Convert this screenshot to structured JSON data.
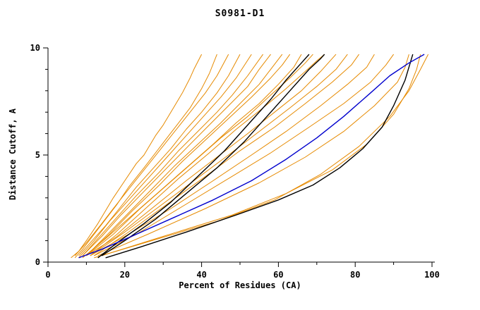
{
  "chart_data": {
    "type": "line",
    "title": "S0981-D1",
    "xlabel": "Percent of Residues (CA)",
    "ylabel": "Distance Cutoff, A",
    "xlim": [
      0,
      100
    ],
    "ylim": [
      0,
      10
    ],
    "xticks": [
      0,
      20,
      40,
      60,
      80,
      100
    ],
    "yticks": [
      0,
      5,
      10
    ],
    "xminor": [
      10,
      30,
      50,
      70,
      90
    ],
    "yminor": [
      1,
      2,
      3,
      4,
      6,
      7,
      8,
      9
    ],
    "grid": false,
    "legend": "none",
    "colors": {
      "model": "#E68A00",
      "reference": "#000000",
      "highlight": "#0000CD"
    },
    "series": [
      {
        "name": "orange-01",
        "color": "#E68A00",
        "width": 1,
        "points": [
          [
            6,
            0.2
          ],
          [
            8,
            0.5
          ],
          [
            10,
            1.0
          ],
          [
            13,
            1.8
          ],
          [
            15,
            2.4
          ],
          [
            17,
            3.0
          ],
          [
            20,
            3.8
          ],
          [
            23,
            4.6
          ],
          [
            25,
            5.0
          ],
          [
            28,
            5.9
          ],
          [
            30,
            6.4
          ],
          [
            33,
            7.3
          ],
          [
            35,
            7.9
          ],
          [
            37,
            8.6
          ],
          [
            38,
            9.0
          ],
          [
            40,
            9.7
          ]
        ]
      },
      {
        "name": "orange-02",
        "color": "#E68A00",
        "width": 1,
        "points": [
          [
            7,
            0.2
          ],
          [
            9,
            0.6
          ],
          [
            12,
            1.3
          ],
          [
            15,
            2.0
          ],
          [
            18,
            2.7
          ],
          [
            21,
            3.5
          ],
          [
            25,
            4.4
          ],
          [
            28,
            5.1
          ],
          [
            31,
            5.8
          ],
          [
            34,
            6.5
          ],
          [
            37,
            7.2
          ],
          [
            40,
            8.1
          ],
          [
            42,
            8.8
          ],
          [
            44,
            9.7
          ]
        ]
      },
      {
        "name": "orange-03",
        "color": "#E68A00",
        "width": 1,
        "points": [
          [
            7,
            0.3
          ],
          [
            10,
            0.9
          ],
          [
            14,
            1.8
          ],
          [
            17,
            2.5
          ],
          [
            21,
            3.4
          ],
          [
            25,
            4.3
          ],
          [
            29,
            5.2
          ],
          [
            33,
            6.1
          ],
          [
            37,
            7.0
          ],
          [
            41,
            7.9
          ],
          [
            44,
            8.7
          ],
          [
            47,
            9.7
          ]
        ]
      },
      {
        "name": "orange-04",
        "color": "#E68A00",
        "width": 1,
        "points": [
          [
            8,
            0.3
          ],
          [
            11,
            0.9
          ],
          [
            15,
            1.7
          ],
          [
            19,
            2.6
          ],
          [
            23,
            3.5
          ],
          [
            28,
            4.5
          ],
          [
            32,
            5.3
          ],
          [
            36,
            6.2
          ],
          [
            40,
            7.0
          ],
          [
            44,
            7.9
          ],
          [
            47,
            8.7
          ],
          [
            50,
            9.7
          ]
        ]
      },
      {
        "name": "orange-05",
        "color": "#E68A00",
        "width": 1,
        "points": [
          [
            8,
            0.2
          ],
          [
            12,
            1.0
          ],
          [
            16,
            1.9
          ],
          [
            21,
            2.9
          ],
          [
            26,
            3.9
          ],
          [
            31,
            4.9
          ],
          [
            36,
            5.9
          ],
          [
            41,
            6.9
          ],
          [
            45,
            7.7
          ],
          [
            49,
            8.6
          ],
          [
            53,
            9.7
          ]
        ]
      },
      {
        "name": "orange-06",
        "color": "#E68A00",
        "width": 1,
        "points": [
          [
            9,
            0.3
          ],
          [
            13,
            1.1
          ],
          [
            18,
            2.1
          ],
          [
            23,
            3.1
          ],
          [
            29,
            4.2
          ],
          [
            34,
            5.2
          ],
          [
            39,
            6.1
          ],
          [
            44,
            7.0
          ],
          [
            48,
            7.8
          ],
          [
            52,
            8.7
          ],
          [
            56,
            9.7
          ]
        ]
      },
      {
        "name": "orange-07",
        "color": "#E68A00",
        "width": 1,
        "points": [
          [
            9,
            0.3
          ],
          [
            14,
            1.2
          ],
          [
            19,
            2.2
          ],
          [
            25,
            3.3
          ],
          [
            31,
            4.4
          ],
          [
            37,
            5.5
          ],
          [
            42,
            6.4
          ],
          [
            47,
            7.3
          ],
          [
            52,
            8.2
          ],
          [
            55,
            9.0
          ],
          [
            58,
            9.7
          ]
        ]
      },
      {
        "name": "orange-08",
        "color": "#E68A00",
        "width": 1,
        "points": [
          [
            10,
            0.3
          ],
          [
            15,
            1.2
          ],
          [
            21,
            2.3
          ],
          [
            27,
            3.4
          ],
          [
            33,
            4.5
          ],
          [
            39,
            5.5
          ],
          [
            45,
            6.5
          ],
          [
            50,
            7.4
          ],
          [
            55,
            8.3
          ],
          [
            58,
            9.0
          ],
          [
            61,
            9.7
          ]
        ]
      },
      {
        "name": "orange-09",
        "color": "#E68A00",
        "width": 1,
        "points": [
          [
            10,
            0.3
          ],
          [
            16,
            1.3
          ],
          [
            22,
            2.4
          ],
          [
            29,
            3.6
          ],
          [
            35,
            4.7
          ],
          [
            41,
            5.7
          ],
          [
            47,
            6.7
          ],
          [
            53,
            7.7
          ],
          [
            58,
            8.6
          ],
          [
            61,
            9.2
          ],
          [
            63,
            9.7
          ]
        ]
      },
      {
        "name": "orange-10",
        "color": "#E68A00",
        "width": 1,
        "points": [
          [
            9,
            0.2
          ],
          [
            15,
            1.1
          ],
          [
            22,
            2.2
          ],
          [
            29,
            3.3
          ],
          [
            36,
            4.4
          ],
          [
            43,
            5.5
          ],
          [
            49,
            6.5
          ],
          [
            55,
            7.4
          ],
          [
            60,
            8.3
          ],
          [
            64,
            9.1
          ],
          [
            66,
            9.7
          ]
        ]
      },
      {
        "name": "orange-11",
        "color": "#E68A00",
        "width": 1,
        "points": [
          [
            10,
            0.3
          ],
          [
            17,
            1.3
          ],
          [
            24,
            2.5
          ],
          [
            31,
            3.6
          ],
          [
            38,
            4.7
          ],
          [
            45,
            5.8
          ],
          [
            52,
            6.8
          ],
          [
            58,
            7.8
          ],
          [
            63,
            8.6
          ],
          [
            67,
            9.3
          ],
          [
            69,
            9.7
          ]
        ]
      },
      {
        "name": "orange-12",
        "color": "#E68A00",
        "width": 1,
        "points": [
          [
            11,
            0.3
          ],
          [
            18,
            1.3
          ],
          [
            26,
            2.6
          ],
          [
            34,
            3.9
          ],
          [
            42,
            5.1
          ],
          [
            49,
            6.2
          ],
          [
            56,
            7.2
          ],
          [
            62,
            8.1
          ],
          [
            67,
            8.9
          ],
          [
            70,
            9.4
          ],
          [
            72,
            9.7
          ]
        ]
      },
      {
        "name": "orange-13",
        "color": "#E68A00",
        "width": 1,
        "points": [
          [
            10,
            0.3
          ],
          [
            18,
            1.2
          ],
          [
            27,
            2.5
          ],
          [
            36,
            3.8
          ],
          [
            44,
            4.9
          ],
          [
            52,
            6.0
          ],
          [
            59,
            7.0
          ],
          [
            66,
            8.0
          ],
          [
            71,
            8.9
          ],
          [
            75,
            9.7
          ]
        ]
      },
      {
        "name": "orange-14",
        "color": "#E68A00",
        "width": 1,
        "points": [
          [
            11,
            0.3
          ],
          [
            20,
            1.4
          ],
          [
            29,
            2.6
          ],
          [
            38,
            3.8
          ],
          [
            47,
            5.0
          ],
          [
            55,
            6.1
          ],
          [
            63,
            7.2
          ],
          [
            70,
            8.2
          ],
          [
            75,
            9.0
          ],
          [
            78,
            9.7
          ]
        ]
      },
      {
        "name": "orange-15",
        "color": "#E68A00",
        "width": 1,
        "points": [
          [
            12,
            0.3
          ],
          [
            21,
            1.4
          ],
          [
            31,
            2.7
          ],
          [
            41,
            4.0
          ],
          [
            50,
            5.2
          ],
          [
            59,
            6.3
          ],
          [
            67,
            7.4
          ],
          [
            74,
            8.4
          ],
          [
            79,
            9.2
          ],
          [
            81,
            9.7
          ]
        ]
      },
      {
        "name": "orange-16",
        "color": "#E68A00",
        "width": 1,
        "points": [
          [
            11,
            0.3
          ],
          [
            21,
            1.3
          ],
          [
            32,
            2.5
          ],
          [
            43,
            3.8
          ],
          [
            53,
            5.0
          ],
          [
            62,
            6.1
          ],
          [
            71,
            7.3
          ],
          [
            78,
            8.3
          ],
          [
            83,
            9.1
          ],
          [
            85,
            9.7
          ]
        ]
      },
      {
        "name": "orange-17",
        "color": "#E68A00",
        "width": 1,
        "points": [
          [
            12,
            0.3
          ],
          [
            23,
            1.3
          ],
          [
            35,
            2.6
          ],
          [
            47,
            3.9
          ],
          [
            58,
            5.1
          ],
          [
            68,
            6.3
          ],
          [
            77,
            7.4
          ],
          [
            84,
            8.4
          ],
          [
            88,
            9.2
          ],
          [
            90,
            9.7
          ]
        ]
      },
      {
        "name": "orange-18",
        "color": "#E68A00",
        "width": 1,
        "points": [
          [
            13,
            0.3
          ],
          [
            26,
            1.3
          ],
          [
            41,
            2.5
          ],
          [
            55,
            3.7
          ],
          [
            67,
            4.9
          ],
          [
            77,
            6.1
          ],
          [
            85,
            7.3
          ],
          [
            91,
            8.4
          ],
          [
            93,
            9.1
          ],
          [
            94,
            9.7
          ]
        ]
      },
      {
        "name": "orange-19",
        "color": "#E68A00",
        "width": 1,
        "points": [
          [
            14,
            0.3
          ],
          [
            30,
            1.2
          ],
          [
            48,
            2.2
          ],
          [
            62,
            3.2
          ],
          [
            74,
            4.3
          ],
          [
            83,
            5.5
          ],
          [
            90,
            6.9
          ],
          [
            94,
            8.1
          ],
          [
            96,
            9.0
          ],
          [
            97,
            9.7
          ]
        ]
      },
      {
        "name": "orange-20",
        "color": "#E68A00",
        "width": 1,
        "points": [
          [
            12,
            0.2
          ],
          [
            27,
            1.0
          ],
          [
            44,
            1.9
          ],
          [
            59,
            2.9
          ],
          [
            71,
            4.1
          ],
          [
            81,
            5.4
          ],
          [
            89,
            6.8
          ],
          [
            94,
            8.0
          ],
          [
            97,
            9.0
          ],
          [
            99,
            9.7
          ]
        ]
      },
      {
        "name": "black-1",
        "color": "#000000",
        "width": 1.4,
        "points": [
          [
            13,
            0.2
          ],
          [
            18,
            0.9
          ],
          [
            25,
            1.8
          ],
          [
            32,
            2.8
          ],
          [
            39,
            4.0
          ],
          [
            46,
            5.2
          ],
          [
            52,
            6.4
          ],
          [
            58,
            7.6
          ],
          [
            62,
            8.5
          ],
          [
            66,
            9.3
          ],
          [
            68,
            9.7
          ]
        ]
      },
      {
        "name": "black-2",
        "color": "#000000",
        "width": 1.4,
        "points": [
          [
            14,
            0.3
          ],
          [
            20,
            1.0
          ],
          [
            28,
            2.0
          ],
          [
            36,
            3.2
          ],
          [
            44,
            4.4
          ],
          [
            51,
            5.6
          ],
          [
            57,
            6.8
          ],
          [
            63,
            8.0
          ],
          [
            68,
            9.0
          ],
          [
            71,
            9.5
          ],
          [
            72,
            9.7
          ]
        ]
      },
      {
        "name": "black-3",
        "color": "#000000",
        "width": 1.4,
        "points": [
          [
            15,
            0.2
          ],
          [
            24,
            0.7
          ],
          [
            36,
            1.4
          ],
          [
            49,
            2.2
          ],
          [
            60,
            2.9
          ],
          [
            69,
            3.6
          ],
          [
            76,
            4.4
          ],
          [
            82,
            5.3
          ],
          [
            87,
            6.3
          ],
          [
            90,
            7.3
          ],
          [
            93,
            8.5
          ],
          [
            95,
            9.7
          ]
        ]
      },
      {
        "name": "blue-1",
        "color": "#0000CD",
        "width": 1.4,
        "points": [
          [
            8,
            0.2
          ],
          [
            14,
            0.6
          ],
          [
            23,
            1.3
          ],
          [
            33,
            2.1
          ],
          [
            43,
            2.9
          ],
          [
            53,
            3.8
          ],
          [
            62,
            4.8
          ],
          [
            70,
            5.8
          ],
          [
            77,
            6.8
          ],
          [
            84,
            7.9
          ],
          [
            89,
            8.7
          ],
          [
            94,
            9.3
          ],
          [
            98,
            9.7
          ]
        ]
      }
    ]
  }
}
